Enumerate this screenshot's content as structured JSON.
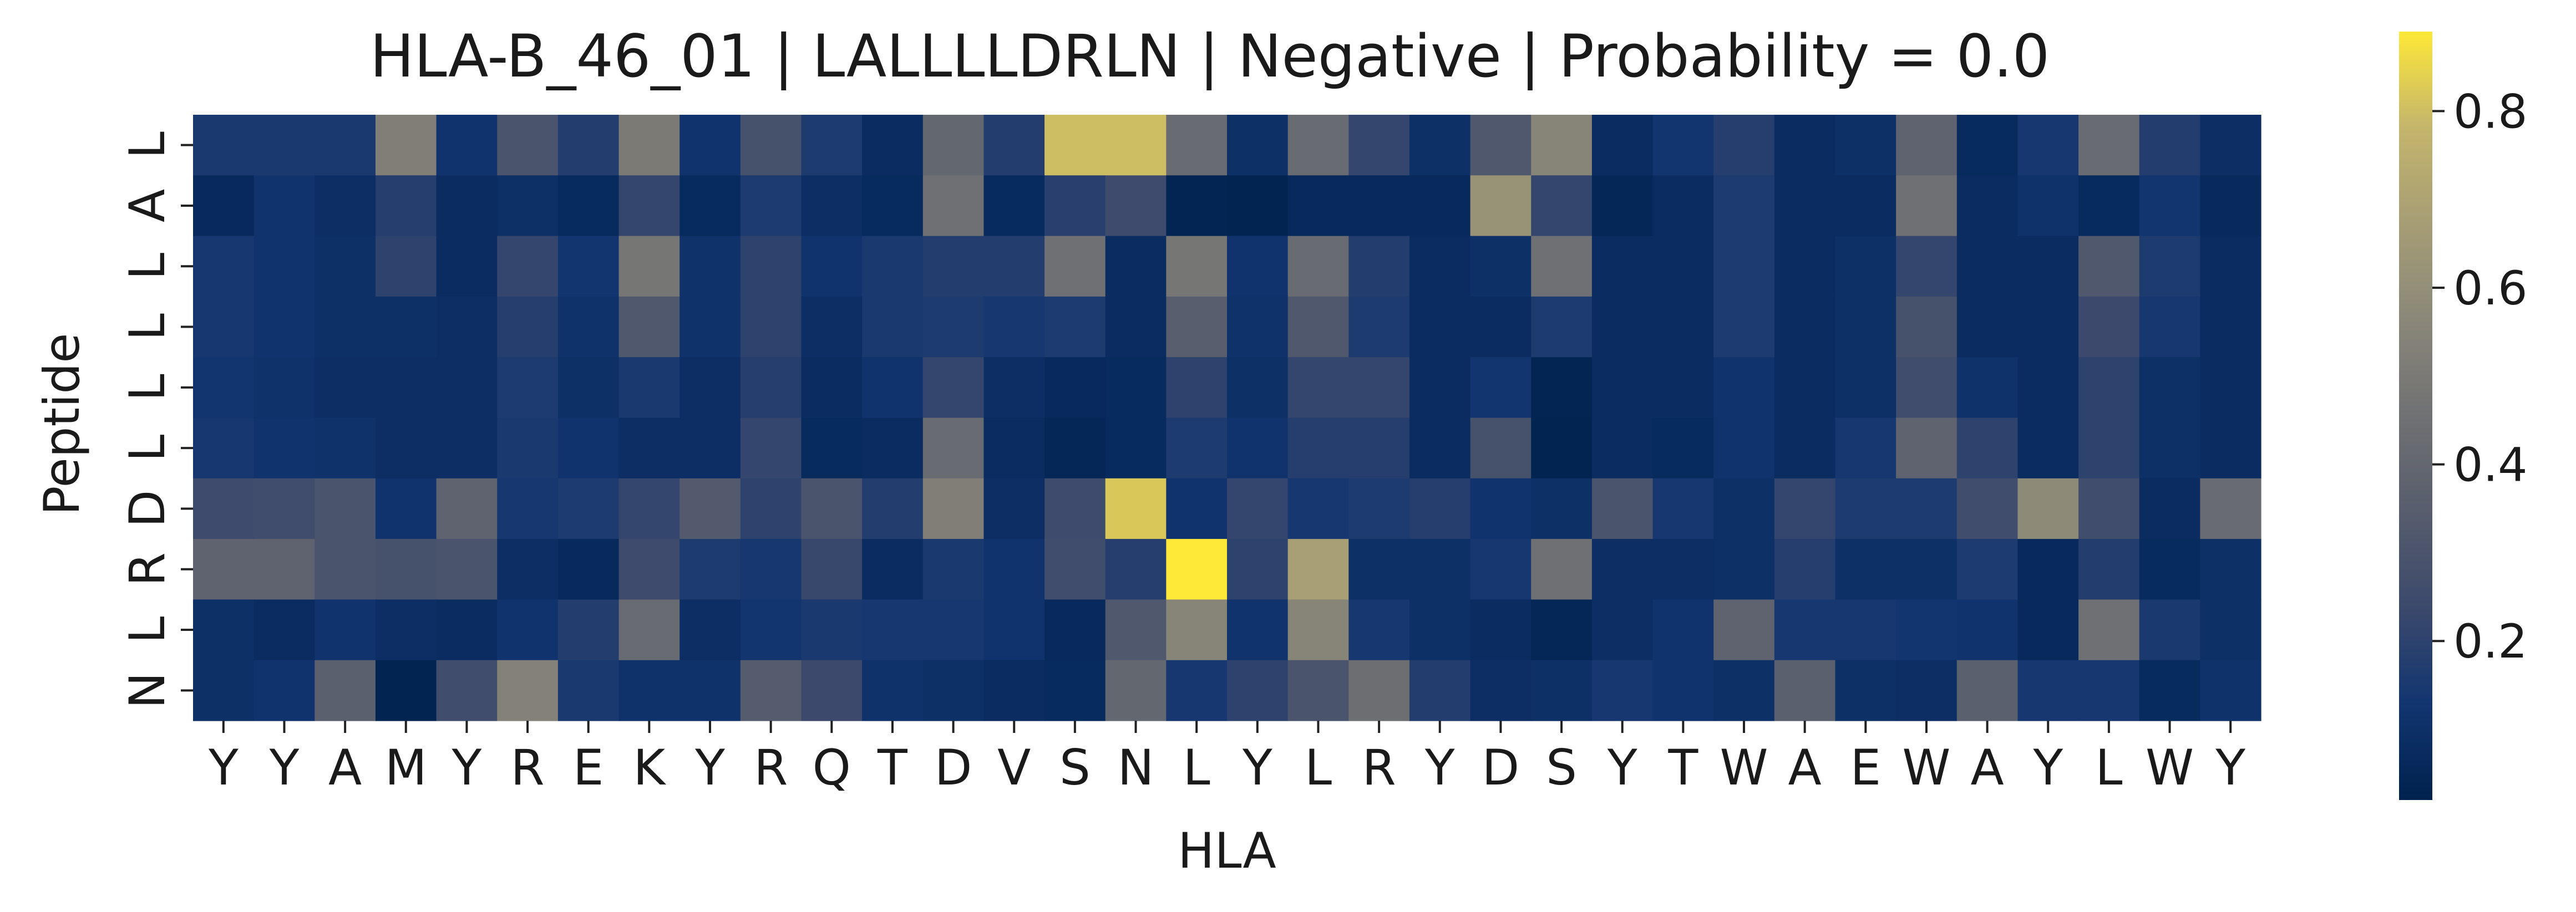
{
  "chart_data": {
    "type": "heatmap",
    "title": "HLA-B_46_01 | LALLLLDRLN | Negative | Probability = 0.0",
    "xlabel": "HLA",
    "ylabel": "Peptide",
    "x_categories": [
      "Y",
      "Y",
      "A",
      "M",
      "Y",
      "R",
      "E",
      "K",
      "Y",
      "R",
      "Q",
      "T",
      "D",
      "V",
      "S",
      "N",
      "L",
      "Y",
      "L",
      "R",
      "Y",
      "D",
      "S",
      "Y",
      "T",
      "W",
      "A",
      "E",
      "W",
      "A",
      "Y",
      "L",
      "W",
      "Y"
    ],
    "y_categories": [
      "L",
      "A",
      "L",
      "L",
      "L",
      "L",
      "D",
      "R",
      "L",
      "N"
    ],
    "colormap": "cividis",
    "vmin": 0.02,
    "vmax": 0.89,
    "colorbar_ticks": [
      0.2,
      0.4,
      0.6,
      0.8
    ],
    "values": [
      [
        0.15,
        0.15,
        0.15,
        0.52,
        0.12,
        0.3,
        0.17,
        0.5,
        0.12,
        0.28,
        0.16,
        0.08,
        0.4,
        0.17,
        0.8,
        0.8,
        0.42,
        0.1,
        0.42,
        0.22,
        0.1,
        0.32,
        0.55,
        0.08,
        0.13,
        0.18,
        0.08,
        0.1,
        0.38,
        0.07,
        0.14,
        0.42,
        0.17,
        0.09
      ],
      [
        0.06,
        0.12,
        0.09,
        0.18,
        0.08,
        0.1,
        0.07,
        0.22,
        0.07,
        0.16,
        0.09,
        0.07,
        0.45,
        0.07,
        0.19,
        0.25,
        0.04,
        0.03,
        0.06,
        0.06,
        0.06,
        0.62,
        0.22,
        0.05,
        0.08,
        0.16,
        0.08,
        0.08,
        0.45,
        0.08,
        0.11,
        0.07,
        0.13,
        0.06
      ],
      [
        0.14,
        0.12,
        0.1,
        0.2,
        0.08,
        0.22,
        0.13,
        0.48,
        0.11,
        0.2,
        0.12,
        0.15,
        0.17,
        0.17,
        0.45,
        0.08,
        0.48,
        0.12,
        0.42,
        0.17,
        0.08,
        0.1,
        0.45,
        0.08,
        0.08,
        0.16,
        0.08,
        0.1,
        0.22,
        0.08,
        0.08,
        0.32,
        0.16,
        0.08
      ],
      [
        0.14,
        0.12,
        0.1,
        0.1,
        0.09,
        0.18,
        0.11,
        0.32,
        0.11,
        0.2,
        0.09,
        0.15,
        0.16,
        0.14,
        0.16,
        0.08,
        0.35,
        0.11,
        0.32,
        0.16,
        0.08,
        0.08,
        0.16,
        0.08,
        0.08,
        0.16,
        0.08,
        0.1,
        0.28,
        0.08,
        0.08,
        0.24,
        0.14,
        0.08
      ],
      [
        0.13,
        0.11,
        0.09,
        0.09,
        0.09,
        0.16,
        0.1,
        0.15,
        0.09,
        0.18,
        0.08,
        0.12,
        0.22,
        0.09,
        0.06,
        0.07,
        0.2,
        0.1,
        0.22,
        0.22,
        0.08,
        0.13,
        0.04,
        0.08,
        0.08,
        0.12,
        0.08,
        0.1,
        0.26,
        0.11,
        0.08,
        0.2,
        0.1,
        0.08
      ],
      [
        0.14,
        0.12,
        0.11,
        0.09,
        0.09,
        0.15,
        0.12,
        0.09,
        0.09,
        0.22,
        0.07,
        0.08,
        0.42,
        0.08,
        0.05,
        0.07,
        0.16,
        0.12,
        0.18,
        0.18,
        0.08,
        0.28,
        0.03,
        0.08,
        0.07,
        0.12,
        0.08,
        0.14,
        0.38,
        0.2,
        0.08,
        0.2,
        0.1,
        0.08
      ],
      [
        0.25,
        0.26,
        0.3,
        0.12,
        0.38,
        0.14,
        0.16,
        0.22,
        0.33,
        0.2,
        0.3,
        0.17,
        0.52,
        0.09,
        0.25,
        0.82,
        0.12,
        0.22,
        0.14,
        0.16,
        0.18,
        0.12,
        0.1,
        0.3,
        0.14,
        0.1,
        0.22,
        0.16,
        0.16,
        0.26,
        0.58,
        0.26,
        0.08,
        0.42
      ],
      [
        0.38,
        0.38,
        0.3,
        0.28,
        0.3,
        0.09,
        0.06,
        0.25,
        0.16,
        0.14,
        0.23,
        0.08,
        0.15,
        0.12,
        0.26,
        0.18,
        0.89,
        0.2,
        0.68,
        0.1,
        0.1,
        0.14,
        0.45,
        0.09,
        0.09,
        0.1,
        0.18,
        0.1,
        0.1,
        0.16,
        0.06,
        0.17,
        0.07,
        0.1
      ],
      [
        0.1,
        0.08,
        0.12,
        0.09,
        0.08,
        0.12,
        0.17,
        0.42,
        0.09,
        0.13,
        0.15,
        0.14,
        0.14,
        0.12,
        0.06,
        0.32,
        0.55,
        0.12,
        0.55,
        0.14,
        0.1,
        0.08,
        0.05,
        0.09,
        0.12,
        0.38,
        0.14,
        0.14,
        0.13,
        0.12,
        0.06,
        0.45,
        0.15,
        0.1
      ],
      [
        0.1,
        0.12,
        0.36,
        0.03,
        0.26,
        0.54,
        0.15,
        0.11,
        0.11,
        0.34,
        0.24,
        0.11,
        0.1,
        0.08,
        0.07,
        0.4,
        0.14,
        0.2,
        0.3,
        0.44,
        0.17,
        0.09,
        0.1,
        0.14,
        0.12,
        0.1,
        0.36,
        0.1,
        0.09,
        0.36,
        0.14,
        0.14,
        0.07,
        0.11
      ]
    ]
  }
}
